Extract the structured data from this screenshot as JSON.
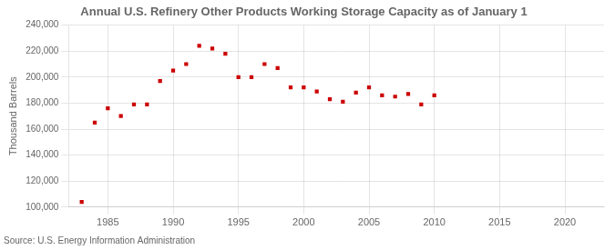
{
  "chart_data": {
    "type": "scatter",
    "title": "Annual U.S. Refinery Other Products Working Storage Capacity as of January 1",
    "ylabel": "Thousand Barrels",
    "source": "Source: U.S. Energy Information Administration",
    "x": [
      1983,
      1984,
      1985,
      1986,
      1987,
      1988,
      1989,
      1990,
      1991,
      1992,
      1993,
      1994,
      1995,
      1996,
      1997,
      1998,
      1999,
      2000,
      2001,
      2002,
      2003,
      2004,
      2005,
      2006,
      2007,
      2008,
      2009,
      2010
    ],
    "values": [
      104000,
      165000,
      176000,
      170000,
      179000,
      179000,
      197000,
      205000,
      210000,
      224000,
      222000,
      218000,
      200000,
      200000,
      210000,
      207000,
      192000,
      192000,
      189000,
      183000,
      181000,
      188000,
      192000,
      186000,
      185000,
      187000,
      179000,
      186000
    ],
    "color": "#cc0000",
    "marker": "square",
    "xlim": [
      1982,
      2023
    ],
    "ylim": [
      100000,
      240001
    ],
    "xticks": [
      1985,
      1990,
      1995,
      2000,
      2005,
      2010,
      2015,
      2020
    ],
    "yticks": [
      {
        "value": 100000,
        "label": "100,000"
      },
      {
        "value": 120000,
        "label": "120,000"
      },
      {
        "value": 140000,
        "label": "140,000"
      },
      {
        "value": 160000,
        "label": "160,000"
      },
      {
        "value": 180000,
        "label": "180,000"
      },
      {
        "value": 200000,
        "label": "200,000"
      },
      {
        "value": 220000,
        "label": "220,000"
      },
      {
        "value": 240000,
        "label": "240,000"
      }
    ],
    "grid": true
  }
}
